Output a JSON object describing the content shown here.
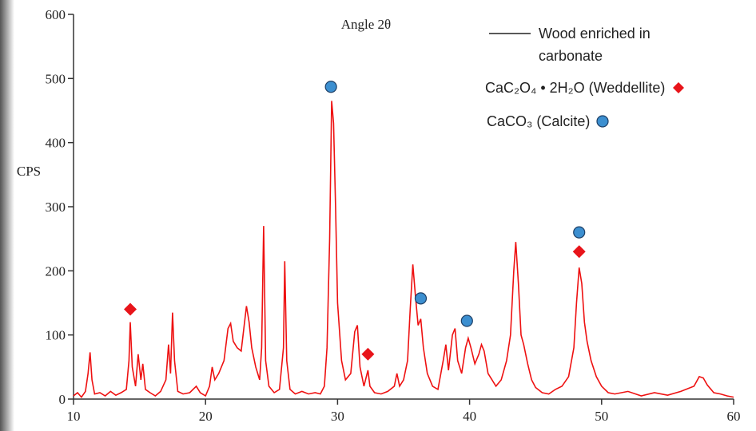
{
  "chart_data": {
    "type": "line",
    "xlabel": "Angle 2θ",
    "ylabel": "CPS",
    "xlim": [
      10,
      60
    ],
    "xticks": [
      10,
      20,
      30,
      40,
      50,
      60
    ],
    "ylim": [
      0,
      600
    ],
    "yticks": [
      0,
      100,
      200,
      300,
      400,
      500,
      600
    ],
    "series": [
      {
        "name": "Wood enriched in carbonate",
        "color": "#ee1111",
        "style": "line",
        "x": [
          10,
          10.3,
          10.6,
          10.9,
          11.1,
          11.25,
          11.4,
          11.6,
          12,
          12.4,
          12.8,
          13.2,
          13.6,
          14,
          14.2,
          14.3,
          14.45,
          14.7,
          14.9,
          15.1,
          15.25,
          15.45,
          15.8,
          16.2,
          16.6,
          17,
          17.2,
          17.35,
          17.5,
          17.65,
          17.9,
          18.3,
          18.8,
          19.3,
          19.6,
          20,
          20.3,
          20.5,
          20.7,
          21,
          21.4,
          21.7,
          21.9,
          22.1,
          22.4,
          22.7,
          22.9,
          23.1,
          23.3,
          23.5,
          23.8,
          24.1,
          24.25,
          24.4,
          24.55,
          24.8,
          25.2,
          25.6,
          25.9,
          26,
          26.15,
          26.4,
          26.8,
          27.3,
          27.8,
          28.3,
          28.7,
          29,
          29.2,
          29.4,
          29.55,
          29.7,
          29.85,
          30,
          30.3,
          30.6,
          31,
          31.3,
          31.5,
          31.7,
          32,
          32.3,
          32.45,
          32.8,
          33.3,
          33.8,
          34.3,
          34.5,
          34.7,
          35,
          35.3,
          35.5,
          35.7,
          35.9,
          36.1,
          36.3,
          36.5,
          36.8,
          37.2,
          37.6,
          38,
          38.2,
          38.4,
          38.7,
          38.9,
          39.1,
          39.4,
          39.7,
          39.9,
          40.1,
          40.4,
          40.7,
          40.9,
          41.1,
          41.4,
          41.7,
          42,
          42.4,
          42.8,
          43.1,
          43.35,
          43.5,
          43.7,
          43.9,
          44.1,
          44.4,
          44.7,
          45,
          45.5,
          46,
          46.5,
          47,
          47.5,
          47.9,
          48.1,
          48.3,
          48.5,
          48.7,
          48.9,
          49.2,
          49.6,
          50,
          50.5,
          51,
          52,
          53,
          54,
          55,
          56,
          57,
          57.4,
          57.7,
          58,
          58.5,
          59,
          59.5,
          60
        ],
        "values": [
          5,
          10,
          3,
          12,
          40,
          73,
          30,
          8,
          10,
          5,
          12,
          6,
          10,
          15,
          60,
          120,
          50,
          20,
          70,
          30,
          55,
          15,
          10,
          5,
          12,
          30,
          85,
          40,
          135,
          60,
          12,
          8,
          10,
          20,
          10,
          5,
          20,
          50,
          30,
          40,
          60,
          110,
          118,
          90,
          80,
          75,
          110,
          145,
          120,
          80,
          50,
          30,
          80,
          270,
          60,
          20,
          10,
          15,
          80,
          215,
          60,
          15,
          8,
          12,
          8,
          10,
          8,
          20,
          80,
          250,
          465,
          430,
          300,
          150,
          60,
          30,
          40,
          105,
          115,
          50,
          20,
          45,
          20,
          10,
          8,
          12,
          20,
          40,
          20,
          30,
          60,
          140,
          210,
          160,
          115,
          125,
          80,
          40,
          20,
          15,
          60,
          85,
          45,
          100,
          110,
          60,
          40,
          80,
          95,
          80,
          55,
          70,
          85,
          75,
          40,
          30,
          20,
          30,
          60,
          100,
          200,
          245,
          180,
          100,
          85,
          55,
          30,
          18,
          10,
          8,
          15,
          20,
          35,
          80,
          150,
          205,
          180,
          120,
          90,
          60,
          35,
          20,
          10,
          8,
          12,
          5,
          10,
          6,
          12,
          20,
          35,
          33,
          22,
          10,
          8,
          5,
          3
        ]
      },
      {
        "name": "CaC₂O₄ • 2H₂O (Weddellite)",
        "color": "#e8141a",
        "style": "diamond",
        "x": [
          14.3,
          32.3,
          48.3
        ],
        "values": [
          140,
          70,
          230
        ]
      },
      {
        "name": "CaCO₃  (Calcite)",
        "color": "#3c8fd0",
        "style": "circle",
        "x": [
          29.5,
          36.3,
          39.8,
          48.3
        ],
        "values": [
          487,
          157,
          122,
          260
        ]
      }
    ]
  }
}
